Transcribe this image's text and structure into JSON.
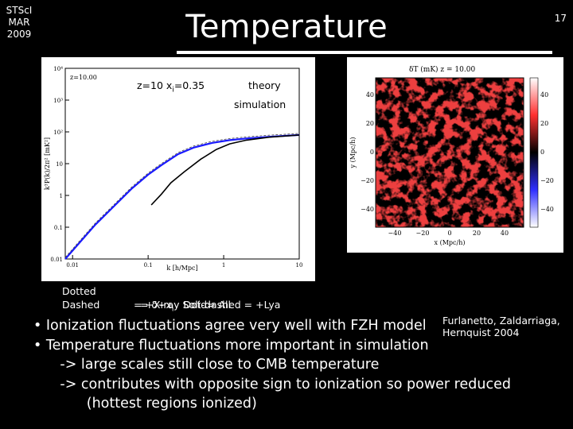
{
  "slide": {
    "corner_note": "STScI\nMAR\n2009",
    "title": "Temperature",
    "slide_number": "17"
  },
  "power_plot": {
    "corner_label": "z=10.00",
    "annotation_params": "z=10 x",
    "annotation_sub": "i",
    "annotation_value": "=0.35",
    "legend_theory": "theory",
    "legend_simulation": "simulation",
    "ylabel": "k³P(k)/2π² [mK²]",
    "xlabel": "k [h/Mpc]",
    "y_ticks": [
      "10⁴",
      "10³",
      "10²",
      "10",
      "1",
      "0.1",
      "0.01"
    ],
    "x_ticks": [
      "0.01",
      "0.1",
      "1",
      "10"
    ]
  },
  "map": {
    "title": "δT (mK)  z = 10.00",
    "ylabel": "y (Mpc/h)",
    "xlabel": "x (Mpc/h)",
    "y_ticks": [
      "40",
      "20",
      "0",
      "−20",
      "−40"
    ],
    "x_ticks": [
      "−40",
      "−20",
      "0",
      "20",
      "40"
    ],
    "colorbar_ticks": [
      "40",
      "20",
      "0",
      "−20",
      "−40"
    ]
  },
  "line_key": {
    "dotted": "Dotted",
    "dashed": "Dashed",
    "row1": "= δ+x",
    "row1_sub": "i",
    "row1_rest": "   Dot-dashed = +Lya",
    "row2": "= +X-ray Solid= All"
  },
  "citation": {
    "line1": "Furlanetto, Zaldarriaga,",
    "line2": "Hernquist 2004"
  },
  "bullets": [
    "• Ionization fluctuations agree very well with FZH model",
    "• Temperature fluctuations more important in simulation",
    "      -> large scales still close to CMB temperature",
    "      -> contributes with opposite sign to ionization so power reduced",
    "            (hottest regions ionized)"
  ],
  "colors": {
    "background": "#000000",
    "text": "#ffffff",
    "theory_curve": "#1a1aff",
    "simulation_curve": "#000000",
    "map_hot": "#cc1010",
    "map_cold": "#1a1acc"
  },
  "chart_data": {
    "type": "line",
    "title": "",
    "xlabel": "k [h/Mpc]",
    "ylabel": "k³P(k)/2π² [mK²]",
    "xscale": "log",
    "yscale": "log",
    "xlim": [
      0.008,
      10
    ],
    "ylim": [
      0.01,
      10000
    ],
    "series": [
      {
        "name": "theory",
        "x": [
          0.008,
          0.012,
          0.02,
          0.035,
          0.06,
          0.1,
          0.15,
          0.25,
          0.4,
          0.7,
          1.2,
          2,
          4,
          10
        ],
        "y": [
          0.01,
          0.03,
          0.12,
          0.45,
          1.6,
          4.5,
          9,
          20,
          32,
          45,
          55,
          62,
          70,
          80
        ]
      },
      {
        "name": "simulation",
        "x": [
          0.11,
          0.15,
          0.2,
          0.3,
          0.5,
          0.8,
          1.2,
          2,
          4,
          10
        ],
        "y": [
          0.5,
          1.1,
          2.5,
          5.5,
          14,
          28,
          42,
          55,
          68,
          80
        ]
      }
    ]
  }
}
